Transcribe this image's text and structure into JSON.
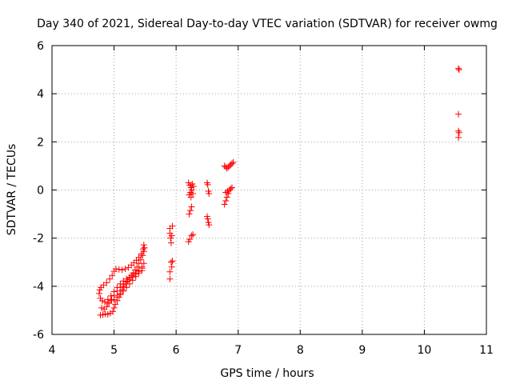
{
  "chart_data": {
    "type": "scatter",
    "title": "Day 340 of 2021, Sidereal Day-to-day VTEC variation (SDTVAR) for receiver owmg",
    "xlabel": "GPS time / hours",
    "ylabel": "SDTVAR / TECUs",
    "xlim": [
      4,
      11
    ],
    "ylim": [
      -6,
      6
    ],
    "xticks": [
      4,
      5,
      6,
      7,
      8,
      9,
      10,
      11
    ],
    "yticks": [
      -6,
      -4,
      -2,
      0,
      2,
      4,
      6
    ],
    "grid": true,
    "marker": "+",
    "marker_color": "#ff0000",
    "series": [
      {
        "points": [
          [
            4.78,
            -5.2
          ],
          [
            4.82,
            -5.18
          ],
          [
            4.86,
            -5.15
          ],
          [
            4.9,
            -5.17
          ],
          [
            4.94,
            -5.12
          ],
          [
            4.98,
            -5.05
          ],
          [
            5.0,
            -4.9
          ],
          [
            5.02,
            -4.75
          ],
          [
            5.05,
            -4.6
          ],
          [
            5.08,
            -4.45
          ],
          [
            5.1,
            -4.3
          ],
          [
            5.13,
            -4.15
          ],
          [
            5.16,
            -4.0
          ],
          [
            5.19,
            -3.9
          ],
          [
            5.22,
            -3.78
          ],
          [
            5.25,
            -3.65
          ],
          [
            5.28,
            -3.55
          ],
          [
            5.31,
            -3.45
          ],
          [
            5.34,
            -3.32
          ],
          [
            5.37,
            -3.2
          ],
          [
            5.4,
            -3.05
          ],
          [
            5.43,
            -2.9
          ],
          [
            5.46,
            -2.72
          ],
          [
            5.48,
            -2.55
          ],
          [
            5.49,
            -2.4
          ],
          [
            5.48,
            -2.28
          ],
          [
            4.76,
            -4.3
          ],
          [
            4.77,
            -4.15
          ],
          [
            4.79,
            -4.05
          ],
          [
            4.83,
            -3.95
          ],
          [
            4.88,
            -3.85
          ],
          [
            4.93,
            -3.7
          ],
          [
            4.97,
            -3.55
          ],
          [
            5.0,
            -3.38
          ],
          [
            5.03,
            -3.28
          ],
          [
            5.08,
            -3.3
          ],
          [
            5.13,
            -3.32
          ],
          [
            5.18,
            -3.28
          ],
          [
            5.23,
            -3.22
          ],
          [
            5.28,
            -3.12
          ],
          [
            5.32,
            -3.02
          ],
          [
            5.36,
            -2.92
          ],
          [
            5.4,
            -2.8
          ],
          [
            5.44,
            -2.65
          ],
          [
            5.47,
            -2.45
          ],
          [
            4.78,
            -4.5
          ],
          [
            4.81,
            -4.6
          ],
          [
            4.85,
            -4.65
          ],
          [
            4.9,
            -4.55
          ],
          [
            4.95,
            -4.4
          ],
          [
            5.0,
            -4.22
          ],
          [
            5.05,
            -4.05
          ],
          [
            5.1,
            -3.9
          ],
          [
            5.15,
            -3.78
          ],
          [
            5.2,
            -3.7
          ],
          [
            5.25,
            -3.62
          ],
          [
            5.3,
            -3.55
          ],
          [
            5.35,
            -3.45
          ],
          [
            5.4,
            -3.35
          ],
          [
            5.45,
            -3.2
          ],
          [
            5.48,
            -3.05
          ],
          [
            4.8,
            -4.9
          ],
          [
            4.84,
            -4.95
          ],
          [
            4.88,
            -4.85
          ],
          [
            4.92,
            -4.7
          ],
          [
            4.96,
            -4.55
          ],
          [
            5.0,
            -4.38
          ],
          [
            5.05,
            -4.2
          ],
          [
            5.1,
            -4.05
          ],
          [
            5.15,
            -3.92
          ],
          [
            5.2,
            -3.82
          ],
          [
            5.25,
            -3.72
          ],
          [
            5.3,
            -3.62
          ],
          [
            5.35,
            -3.5
          ],
          [
            5.4,
            -3.38
          ],
          [
            5.45,
            -3.25
          ],
          [
            4.9,
            -4.7
          ],
          [
            4.95,
            -4.6
          ],
          [
            5.0,
            -4.55
          ],
          [
            5.05,
            -4.45
          ],
          [
            5.1,
            -4.35
          ],
          [
            5.15,
            -4.2
          ],
          [
            5.2,
            -4.05
          ],
          [
            5.25,
            -3.9
          ],
          [
            5.3,
            -3.75
          ],
          [
            5.35,
            -3.6
          ],
          [
            5.4,
            -3.45
          ],
          [
            5.45,
            -3.35
          ],
          [
            5.9,
            -1.6
          ],
          [
            5.9,
            -1.8
          ],
          [
            5.91,
            -2.0
          ],
          [
            5.92,
            -2.2
          ],
          [
            5.93,
            -1.9
          ],
          [
            5.94,
            -1.5
          ],
          [
            5.92,
            -3.0
          ],
          [
            5.93,
            -3.2
          ],
          [
            5.9,
            -3.4
          ],
          [
            5.9,
            -3.7
          ],
          [
            5.94,
            -2.95
          ],
          [
            6.2,
            0.3
          ],
          [
            6.22,
            0.2
          ],
          [
            6.24,
            0.1
          ],
          [
            6.26,
            0.25
          ],
          [
            6.28,
            0.15
          ],
          [
            6.25,
            0.0
          ],
          [
            6.23,
            -0.1
          ],
          [
            6.21,
            -0.2
          ],
          [
            6.24,
            -0.3
          ],
          [
            6.27,
            -0.15
          ],
          [
            6.25,
            -0.7
          ],
          [
            6.23,
            -0.85
          ],
          [
            6.21,
            -1.0
          ],
          [
            6.2,
            -2.15
          ],
          [
            6.22,
            -2.05
          ],
          [
            6.25,
            -1.9
          ],
          [
            6.27,
            -1.85
          ],
          [
            6.5,
            0.3
          ],
          [
            6.51,
            0.22
          ],
          [
            6.52,
            -0.05
          ],
          [
            6.53,
            -0.15
          ],
          [
            6.5,
            -1.1
          ],
          [
            6.51,
            -1.2
          ],
          [
            6.52,
            -1.35
          ],
          [
            6.53,
            -1.45
          ],
          [
            6.78,
            -0.6
          ],
          [
            6.8,
            -0.45
          ],
          [
            6.82,
            -0.3
          ],
          [
            6.84,
            -0.15
          ],
          [
            6.86,
            0.0
          ],
          [
            6.88,
            0.05
          ],
          [
            6.9,
            0.1
          ],
          [
            6.8,
            -0.1
          ],
          [
            6.83,
            -0.05
          ],
          [
            6.78,
            1.0
          ],
          [
            6.8,
            0.95
          ],
          [
            6.82,
            0.9
          ],
          [
            6.84,
            0.95
          ],
          [
            6.86,
            1.0
          ],
          [
            6.88,
            1.05
          ],
          [
            6.9,
            1.1
          ],
          [
            6.92,
            1.15
          ],
          [
            10.55,
            5.05
          ],
          [
            10.56,
            5.0
          ],
          [
            10.55,
            3.15
          ],
          [
            10.55,
            2.45
          ],
          [
            10.56,
            2.38
          ],
          [
            10.55,
            2.18
          ]
        ]
      }
    ]
  }
}
